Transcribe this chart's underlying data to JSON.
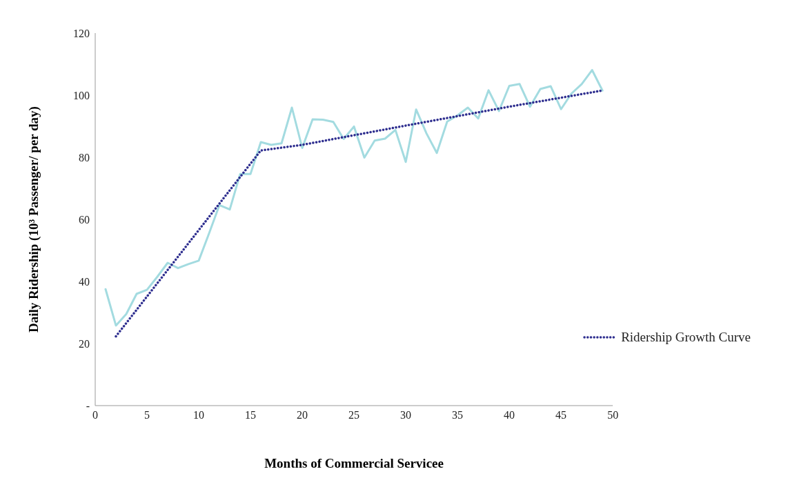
{
  "chart_data": {
    "type": "line",
    "xlabel": "Months of Commercial Servicee",
    "ylabel": "Daily Ridership  (10³ Passenger/ per day)",
    "xlim": [
      0,
      50
    ],
    "xticks": [
      0,
      5,
      10,
      15,
      20,
      25,
      30,
      35,
      40,
      45,
      50
    ],
    "ylim": [
      0,
      120
    ],
    "yticks": [
      {
        "value": 0,
        "label": "-"
      },
      20,
      40,
      60,
      80,
      100,
      120
    ],
    "grid": false,
    "legend": "right",
    "marker": "none",
    "series": [
      {
        "color": "#a3dbe0",
        "line_style": "solid",
        "x": [
          1,
          2,
          3,
          4,
          5,
          6,
          7,
          8,
          9,
          10,
          11,
          12,
          13,
          14,
          15,
          16,
          17,
          18,
          19,
          20,
          21,
          22,
          23,
          24,
          25,
          26,
          27,
          28,
          29,
          30,
          31,
          32,
          33,
          34,
          35,
          36,
          37,
          38,
          39,
          40,
          41,
          42,
          43,
          44,
          45,
          46,
          47,
          48,
          49
        ],
        "values": [
          37.5,
          25.8,
          29.5,
          36,
          37.3,
          41.5,
          46,
          44.3,
          45.6,
          46.7,
          55.5,
          64.6,
          63.2,
          74.6,
          74.6,
          84.9,
          84,
          84.5,
          96,
          83,
          92.2,
          92.1,
          91.4,
          85.9,
          89.9,
          79.9,
          85.4,
          86,
          88.8,
          78.5,
          95.4,
          87.7,
          81.4,
          91.5,
          93.5,
          96,
          92.5,
          101.6,
          94.9,
          103,
          103.6,
          96.3,
          102,
          102.9,
          95.5,
          100.5,
          103.6,
          108.1,
          101.5
        ]
      },
      {
        "name": "Ridership Growth Curve",
        "color": "#2e2e8f",
        "line_style": "dotted",
        "x": [
          2,
          16,
          20,
          30,
          40,
          49
        ],
        "values": [
          22.3,
          82.2,
          84,
          90.2,
          96.3,
          101.5
        ]
      }
    ]
  }
}
